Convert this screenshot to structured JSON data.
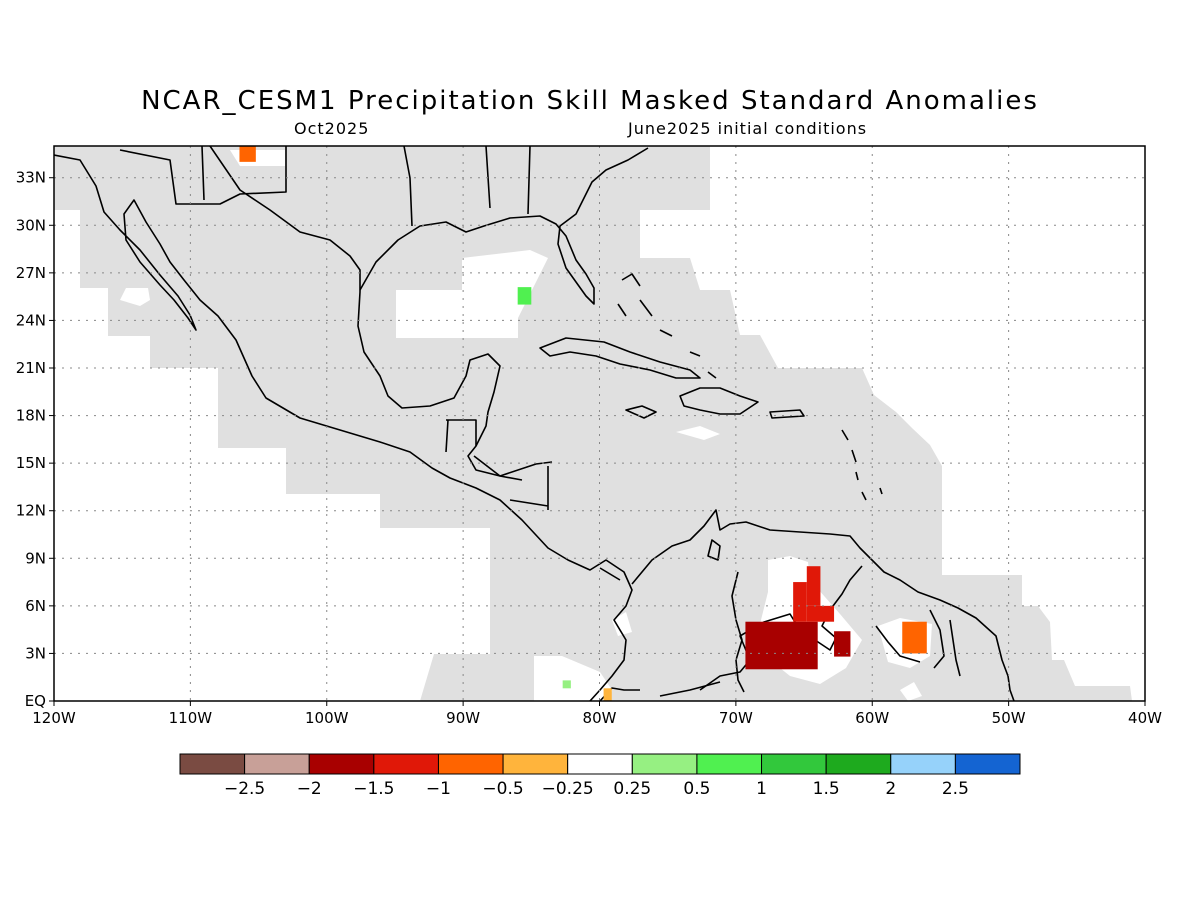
{
  "title": "NCAR_CESM1 Precipitation Skill Masked Standard Anomalies",
  "subtitle_left": "Oct2025",
  "subtitle_right": "June2025 initial conditions",
  "map": {
    "lon_min": -120,
    "lon_max": -40,
    "lat_min": 0,
    "lat_max": 35,
    "grid": "dotted",
    "lon_ticks": [
      {
        "value": -120,
        "label": "120W"
      },
      {
        "value": -110,
        "label": "110W"
      },
      {
        "value": -100,
        "label": "100W"
      },
      {
        "value": -90,
        "label": "90W"
      },
      {
        "value": -80,
        "label": "80W"
      },
      {
        "value": -70,
        "label": "70W"
      },
      {
        "value": -60,
        "label": "60W"
      },
      {
        "value": -50,
        "label": "50W"
      },
      {
        "value": -40,
        "label": "40W"
      }
    ],
    "lat_ticks": [
      {
        "value": 0,
        "label": "EQ"
      },
      {
        "value": 3,
        "label": "3N"
      },
      {
        "value": 6,
        "label": "6N"
      },
      {
        "value": 9,
        "label": "9N"
      },
      {
        "value": 12,
        "label": "12N"
      },
      {
        "value": 15,
        "label": "15N"
      },
      {
        "value": 18,
        "label": "18N"
      },
      {
        "value": 21,
        "label": "21N"
      },
      {
        "value": 24,
        "label": "24N"
      },
      {
        "value": 27,
        "label": "27N"
      },
      {
        "value": 30,
        "label": "30N"
      },
      {
        "value": 33,
        "label": "33N"
      }
    ],
    "skill_mask_color": "#e0e0e0",
    "anomaly_cells": [
      {
        "lon": [
          -106.4,
          -105.2
        ],
        "lat": [
          34.0,
          35.0
        ],
        "value": -0.75
      },
      {
        "lon": [
          -86.0,
          -85.0
        ],
        "lat": [
          25.0,
          26.1
        ],
        "value": 0.75
      },
      {
        "lon": [
          -69.3,
          -64.0
        ],
        "lat": [
          2.0,
          5.0
        ],
        "value": -1.75
      },
      {
        "lon": [
          -64.8,
          -62.8
        ],
        "lat": [
          5.0,
          6.0
        ],
        "value": -1.25
      },
      {
        "lon": [
          -64.8,
          -63.8
        ],
        "lat": [
          6.0,
          8.5
        ],
        "value": -1.25
      },
      {
        "lon": [
          -65.8,
          -64.8
        ],
        "lat": [
          5.0,
          7.5
        ],
        "value": -1.25
      },
      {
        "lon": [
          -62.8,
          -61.6
        ],
        "lat": [
          2.8,
          4.4
        ],
        "value": -1.75
      },
      {
        "lon": [
          -57.8,
          -56.0
        ],
        "lat": [
          3.0,
          5.0
        ],
        "value": -0.75
      },
      {
        "lon": [
          -79.7,
          -79.1
        ],
        "lat": [
          0.0,
          0.8
        ],
        "value": -0.375
      },
      {
        "lon": [
          -82.7,
          -82.1
        ],
        "lat": [
          0.8,
          1.3
        ],
        "value": 0.375
      }
    ]
  },
  "colorbar": {
    "colors": [
      "#7a4b42",
      "#c8a098",
      "#a80000",
      "#e01808",
      "#ff6400",
      "#ffb43c",
      "#ffffff",
      "#96f082",
      "#50f050",
      "#32c83c",
      "#1eaa1e",
      "#96d2fa",
      "#1464d2"
    ],
    "labels": [
      "−2.5",
      "−2",
      "−1.5",
      "−1",
      "−0.5",
      "−0.25",
      "0.25",
      "0.5",
      "1",
      "1.5",
      "2",
      "2.5"
    ]
  }
}
